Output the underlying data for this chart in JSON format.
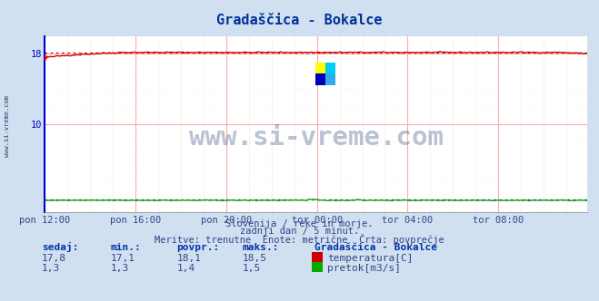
{
  "title": "Gradaščica - Bokalce",
  "bg_color": "#d0e0f0",
  "plot_bg_color": "#ffffff",
  "grid_color_major": "#ffaaaa",
  "grid_color_minor": "#ffe0e0",
  "x_labels": [
    "pon 12:00",
    "pon 16:00",
    "pon 20:00",
    "tor 00:00",
    "tor 04:00",
    "tor 08:00"
  ],
  "x_ticks_pos": [
    0,
    48,
    96,
    144,
    192,
    240
  ],
  "n_points": 288,
  "ylim": [
    0,
    20
  ],
  "temp_color": "#cc0000",
  "flow_color": "#00aa00",
  "flow_dotted_color": "#0000cc",
  "temp_povpr": 18.1,
  "flow_povpr": 1.4,
  "subtitle1": "Slovenija / reke in morje.",
  "subtitle2": "zadnji dan / 5 minut.",
  "subtitle3": "Meritve: trenutne  Enote: metrične  Črta: povprečje",
  "legend_title": "Gradaščica - Bokalce",
  "label_temp": "temperatura[C]",
  "label_flow": "pretok[m3/s]",
  "watermark": "www.si-vreme.com",
  "watermark_color": "#1a3a6e",
  "left_label": "www.si-vreme.com",
  "title_color": "#003399",
  "axis_color": "#0000cc",
  "text_color": "#334488",
  "header_color": "#0033aa",
  "logo_colors": [
    "#ffff00",
    "#00ccff",
    "#0000cc",
    "#00ccff"
  ],
  "temp_start": 17.5,
  "temp_end": 18.0,
  "temp_plateau": 18.15,
  "flow_base": 1.35
}
